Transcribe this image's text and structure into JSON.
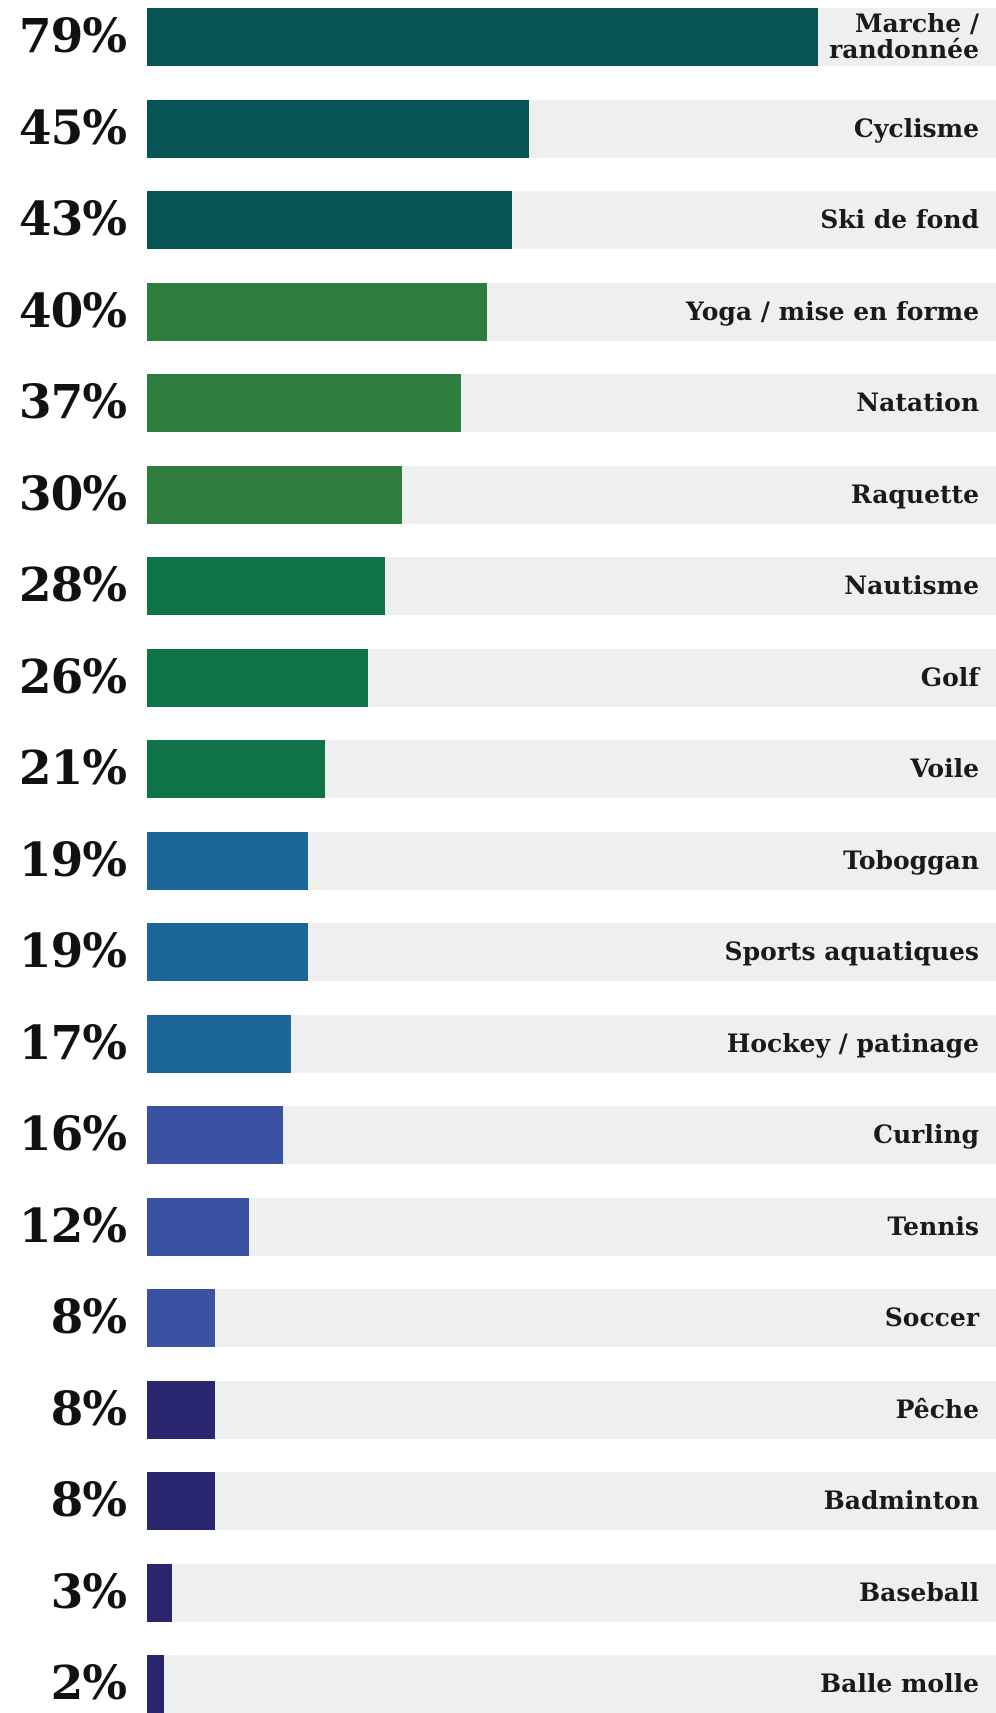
{
  "chart_data": {
    "type": "bar",
    "orientation": "horizontal",
    "title": "",
    "xlabel": "",
    "ylabel": "",
    "xlim": [
      0,
      100
    ],
    "grid": false,
    "legend": "none",
    "unit": "%",
    "categories": [
      "Marche /\nrandonnée",
      "Cyclisme",
      "Ski de fond",
      "Yoga / mise en forme",
      "Natation",
      "Raquette",
      "Nautisme",
      "Golf",
      "Voile",
      "Toboggan",
      "Sports aquatiques",
      "Hockey / patinage",
      "Curling",
      "Tennis",
      "Soccer",
      "Pêche",
      "Badminton",
      "Baseball",
      "Balle molle"
    ],
    "values": [
      79,
      45,
      43,
      40,
      37,
      30,
      28,
      26,
      21,
      19,
      19,
      17,
      16,
      12,
      8,
      8,
      8,
      3,
      2
    ],
    "value_labels": [
      "79%",
      "45%",
      "43%",
      "40%",
      "37%",
      "30%",
      "28%",
      "26%",
      "21%",
      "19%",
      "19%",
      "17%",
      "16%",
      "12%",
      "8%",
      "8%",
      "8%",
      "3%",
      "2%"
    ],
    "bar_colors": [
      "#065554",
      "#065554",
      "#065554",
      "#2e7d3e",
      "#2e7d3e",
      "#2e7d3e",
      "#0e7347",
      "#0e7347",
      "#0e7347",
      "#1d6699",
      "#1d6699",
      "#1d6699",
      "#3a52a2",
      "#3a52a2",
      "#3a52a2",
      "#29256e",
      "#29256e",
      "#29256e",
      "#29256e"
    ],
    "track_color": "#eef0ef"
  }
}
